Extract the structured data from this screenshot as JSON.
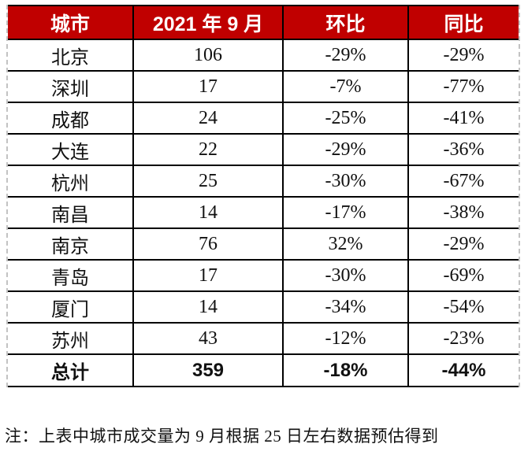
{
  "table": {
    "columns": [
      {
        "key": "city",
        "label": "城市"
      },
      {
        "key": "volume",
        "label": "2021 年 9 月"
      },
      {
        "key": "mom",
        "label": "环比"
      },
      {
        "key": "yoy",
        "label": "同比"
      }
    ],
    "rows": [
      {
        "city": "北京",
        "volume": "106",
        "mom": "-29%",
        "yoy": "-29%"
      },
      {
        "city": "深圳",
        "volume": "17",
        "mom": "-7%",
        "yoy": "-77%"
      },
      {
        "city": "成都",
        "volume": "24",
        "mom": "-25%",
        "yoy": "-41%"
      },
      {
        "city": "大连",
        "volume": "22",
        "mom": "-29%",
        "yoy": "-36%"
      },
      {
        "city": "杭州",
        "volume": "25",
        "mom": "-30%",
        "yoy": "-67%"
      },
      {
        "city": "南昌",
        "volume": "14",
        "mom": "-17%",
        "yoy": "-38%"
      },
      {
        "city": "南京",
        "volume": "76",
        "mom": "32%",
        "yoy": "-29%"
      },
      {
        "city": "青岛",
        "volume": "17",
        "mom": "-30%",
        "yoy": "-69%"
      },
      {
        "city": "厦门",
        "volume": "14",
        "mom": "-34%",
        "yoy": "-54%"
      },
      {
        "city": "苏州",
        "volume": "43",
        "mom": "-12%",
        "yoy": "-23%"
      }
    ],
    "total": {
      "city": "总计",
      "volume": "359",
      "mom": "-18%",
      "yoy": "-44%"
    }
  },
  "note": "注：上表中城市成交量为 9 月根据 25 日左右数据预估得到",
  "colors": {
    "header_bg": "#c00000",
    "header_text": "#ffffff",
    "border": "#000000",
    "dashed_edge": "#c3c3c3"
  }
}
